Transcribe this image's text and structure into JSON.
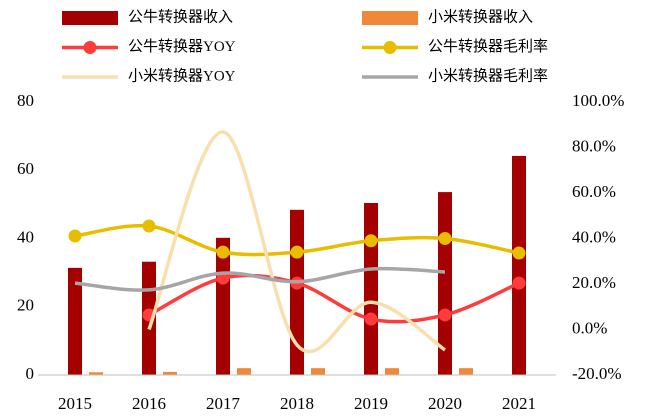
{
  "chart_data": {
    "type": "bar",
    "categories": [
      "2015",
      "2016",
      "2017",
      "2018",
      "2019",
      "2020",
      "2021"
    ],
    "series": [
      {
        "name": "公牛转换器收入",
        "type": "bar",
        "color": "#a50000",
        "values": [
          31.4,
          33.2,
          40.2,
          48.4,
          50.4,
          53.6,
          64.2
        ]
      },
      {
        "name": "小米转换器收入",
        "type": "bar",
        "color": "#f0883a",
        "values": [
          0.8,
          0.9,
          2.0,
          2.0,
          2.0,
          2.0,
          null
        ]
      },
      {
        "name": "公牛转换器YOY",
        "type": "line",
        "axis": "y2",
        "marker": true,
        "color": "#ff3b3b",
        "values": [
          null,
          6.4,
          22.6,
          20.4,
          4.6,
          6.4,
          20.4
        ]
      },
      {
        "name": "公牛转换器毛利率",
        "type": "line",
        "axis": "y2",
        "marker": true,
        "color": "#e8bd00",
        "values": [
          41.1,
          45.5,
          34.0,
          34.0,
          39.0,
          40.0,
          33.6
        ]
      },
      {
        "name": "小米转换器YOY",
        "type": "line",
        "axis": "y2",
        "marker": false,
        "color": "#f7dfae",
        "values": [
          null,
          0.0,
          86.8,
          -6.8,
          12.0,
          -9.0,
          null
        ]
      },
      {
        "name": "小米转换器毛利率",
        "type": "line",
        "axis": "y2",
        "marker": false,
        "color": "#a6a6a6",
        "values": [
          20.4,
          17.4,
          24.8,
          21.0,
          26.6,
          25.3,
          null
        ]
      }
    ],
    "ylim": [
      0,
      80
    ],
    "yticks": [
      0,
      20,
      40,
      60,
      80
    ],
    "y2lim": [
      -20,
      100
    ],
    "y2ticks": [
      {
        "value": -20,
        "label": "-20.0%"
      },
      {
        "value": 0,
        "label": "0.0%"
      },
      {
        "value": 20,
        "label": "20.0%"
      },
      {
        "value": 40,
        "label": "40.0%"
      },
      {
        "value": 60,
        "label": "60.0%"
      },
      {
        "value": 80,
        "label": "80.0%"
      },
      {
        "value": 100,
        "label": "100.0%"
      }
    ],
    "grid": false
  }
}
